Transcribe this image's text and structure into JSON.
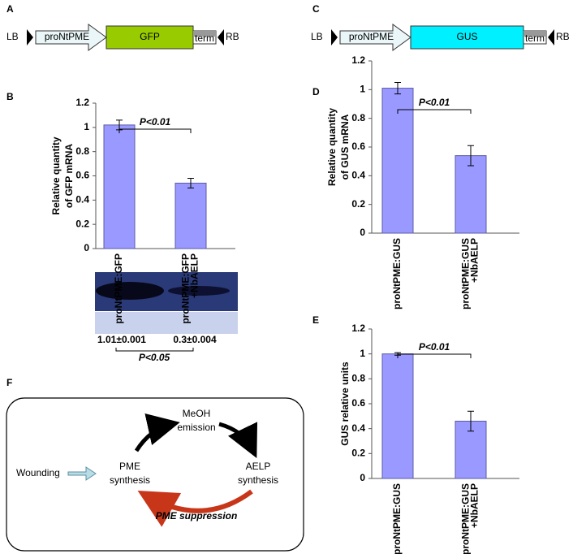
{
  "panel_labels": [
    "A",
    "B",
    "C",
    "D",
    "E",
    "F"
  ],
  "constructs": [
    {
      "left": "LB",
      "promoter": "proNtPME",
      "gene": "GFP",
      "terminator": "term",
      "right": "RB"
    },
    {
      "left": "LB",
      "promoter": "proNtPME",
      "gene": "GUS",
      "terminator": "term",
      "right": "RB"
    }
  ],
  "blot": {
    "quantities": [
      "1.01±0.001",
      "0.3±0.004"
    ],
    "significance": "P<0.05"
  },
  "diagram": {
    "nodes": [
      "Wounding",
      [
        "PME",
        "synthesis"
      ],
      [
        "MeOH",
        "emission"
      ],
      [
        "AELP",
        "synthesis"
      ]
    ],
    "feedback": "PME suppression"
  },
  "chart_data": [
    {
      "type": "bar",
      "y_label": [
        "Relative quantity",
        "of GFP mRNA"
      ],
      "categories": [
        "proNtPME:GFP",
        "proNtPME:GFP\n+NbAELP"
      ],
      "values": [
        1.02,
        0.54
      ],
      "errors": [
        0.04,
        0.04
      ],
      "color": "#9999ff",
      "ylim": [
        0,
        1.2
      ],
      "yticks": [
        0,
        0.2,
        0.4,
        0.6,
        0.8,
        1,
        1.2
      ],
      "significance": "P<0.01"
    },
    {
      "type": "bar",
      "y_label": [
        "Relative quantity",
        "of GUS mRNA"
      ],
      "categories": [
        "proNtPME:GUS",
        "proNtPME:GUS\n+NbAELP"
      ],
      "values": [
        1.01,
        0.54
      ],
      "errors": [
        0.04,
        0.07
      ],
      "color": "#9999ff",
      "ylim": [
        0,
        1.2
      ],
      "yticks": [
        0,
        0.2,
        0.4,
        0.6,
        0.8,
        1,
        1.2
      ],
      "significance": "P<0.01"
    },
    {
      "type": "bar",
      "y_label": [
        "GUS relative units"
      ],
      "categories": [
        "proNtPME:GUS",
        "proNtPME:GUS\n+NbAELP"
      ],
      "values": [
        1.0,
        0.46
      ],
      "errors": [
        0.01,
        0.08
      ],
      "color": "#9999ff",
      "ylim": [
        0,
        1.2
      ],
      "yticks": [
        0,
        0.2,
        0.4,
        0.6,
        0.8,
        1,
        1.2
      ],
      "significance": "P<0.01"
    }
  ]
}
